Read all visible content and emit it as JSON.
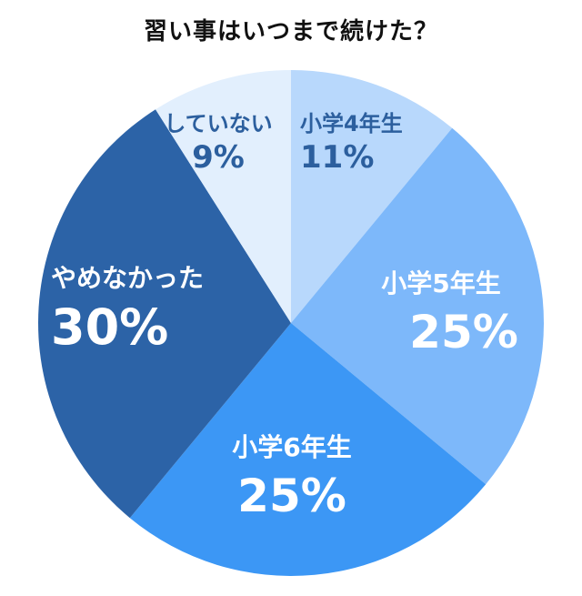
{
  "title": "習い事はいつまで続けた？",
  "chart_data": {
    "type": "pie",
    "title": "習い事はいつまで続けた？",
    "start_angle": "12 o'clock, clockwise",
    "categories": [
      "小学4年生",
      "小学5年生",
      "小学6年生",
      "やめなかった",
      "していない"
    ],
    "values": [
      11,
      25,
      25,
      30,
      9
    ],
    "unit": "%",
    "labels": [
      "11%",
      "25%",
      "25%",
      "30%",
      "9%"
    ],
    "colors": [
      "#b8d8fc",
      "#7db8fa",
      "#3c97f5",
      "#2c63a7",
      "#e2effd"
    ],
    "label_colors": [
      "#2c5f9e",
      "#ffffff",
      "#ffffff",
      "#ffffff",
      "#2c5f9e"
    ],
    "legend": "none (labels inside slices)"
  },
  "slices": [
    {
      "category": "小学4年生",
      "percent": "11%"
    },
    {
      "category": "小学5年生",
      "percent": "25%"
    },
    {
      "category": "小学6年生",
      "percent": "25%"
    },
    {
      "category": "やめなかった",
      "percent": "30%"
    },
    {
      "category": "していない",
      "percent": "9%"
    }
  ]
}
